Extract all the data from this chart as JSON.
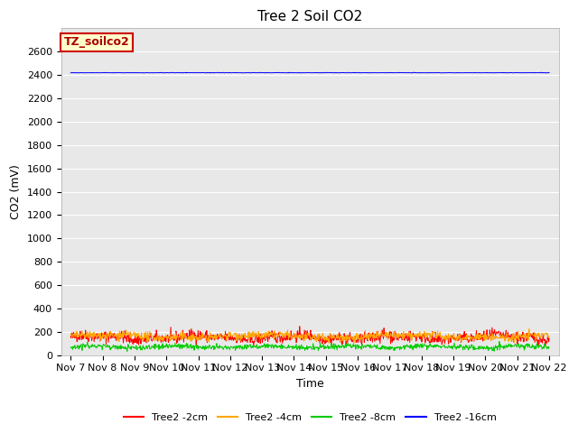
{
  "title": "Tree 2 Soil CO2",
  "ylabel": "CO2 (mV)",
  "xlabel": "Time",
  "ylim": [
    0,
    2800
  ],
  "yticks": [
    0,
    200,
    400,
    600,
    800,
    1000,
    1200,
    1400,
    1600,
    1800,
    2000,
    2200,
    2400,
    2600
  ],
  "n_points": 1000,
  "lines": {
    "Tree2 -2cm": {
      "color": "#ff0000",
      "base": 150,
      "noise": 25
    },
    "Tree2 -4cm": {
      "color": "#ffa500",
      "base": 160,
      "noise": 18
    },
    "Tree2 -8cm": {
      "color": "#00cc00",
      "base": 70,
      "noise": 12
    },
    "Tree2 -16cm": {
      "color": "#0000ff",
      "base": 2420,
      "noise": 1
    }
  },
  "annotation_text": "TZ_soilco2",
  "annotation_bg": "#ffffcc",
  "annotation_edge": "#cc0000",
  "fig_bg": "#ffffff",
  "plot_bg": "#e8e8e8",
  "grid_color": "#ffffff",
  "x_labels": [
    "Nov 7",
    "Nov 8",
    "Nov 9",
    "Nov 10",
    "Nov 11",
    "Nov 12",
    "Nov 13",
    "Nov 14",
    "Nov 15",
    "Nov 16",
    "Nov 17",
    "Nov 18",
    "Nov 19",
    "Nov 20",
    "Nov 21",
    "Nov 22"
  ],
  "legend_entries": [
    "Tree2 -2cm",
    "Tree2 -4cm",
    "Tree2 -8cm",
    "Tree2 -16cm"
  ],
  "legend_colors": [
    "#ff0000",
    "#ffa500",
    "#00cc00",
    "#0000ff"
  ],
  "title_fontsize": 11,
  "tick_fontsize": 8,
  "label_fontsize": 9,
  "legend_fontsize": 8
}
